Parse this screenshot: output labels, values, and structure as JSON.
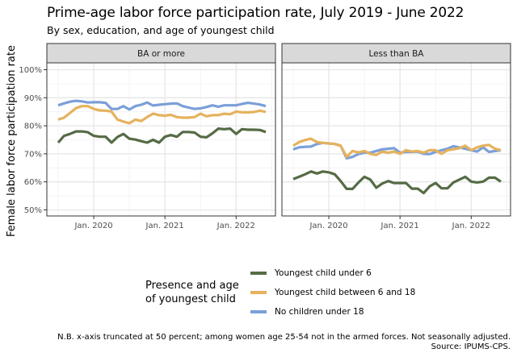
{
  "chart_data": {
    "type": "line",
    "title": "Prime-age labor force participation rate, July 2019 - June 2022",
    "subtitle": "By sex, education, and age of youngest child",
    "ylabel": "Female labor force participation rate",
    "xlabel": "",
    "ylim": [
      50,
      100
    ],
    "yticks": [
      "50%",
      "60%",
      "70%",
      "80%",
      "90%",
      "100%"
    ],
    "ytick_values": [
      50,
      60,
      70,
      80,
      90,
      100
    ],
    "xticks": [
      "Jan. 2020",
      "Jan. 2021",
      "Jan. 2022"
    ],
    "xtick_month_index": [
      6,
      18,
      30
    ],
    "x_start": "July 2019",
    "x_end": "June 2022",
    "n_months": 36,
    "grid": true,
    "legend": {
      "title": "Presence and age of youngest child",
      "title_lines": [
        "Presence and age",
        "of youngest child"
      ],
      "placement": "bottom",
      "entries": [
        {
          "name": "Youngest child under 6",
          "color": "#556b45"
        },
        {
          "name": "Youngest child between 6 and 18",
          "color": "#e5b25d"
        },
        {
          "name": "No children under 18",
          "color": "#7b9fd8"
        }
      ]
    },
    "panels": [
      {
        "label": "BA or more",
        "series": [
          {
            "name": "No children under 18",
            "color": "#7b9fd8",
            "values": [
              87.3,
              88.0,
              88.6,
              88.9,
              88.7,
              88.3,
              88.4,
              88.4,
              88.2,
              86.0,
              86.0,
              87.0,
              85.8,
              87.0,
              87.5,
              88.3,
              87.2,
              87.5,
              87.7,
              87.9,
              88.0,
              87.0,
              86.5,
              86.0,
              86.2,
              86.7,
              87.3,
              86.8,
              87.3,
              87.3,
              87.3,
              87.8,
              88.2,
              87.9,
              87.6,
              87.0
            ]
          },
          {
            "name": "Youngest child between 6 and 18",
            "color": "#e5b25d",
            "values": [
              82.2,
              82.9,
              84.6,
              86.3,
              87.0,
              87.0,
              86.0,
              85.5,
              85.4,
              85.1,
              82.2,
              81.5,
              80.9,
              82.2,
              81.7,
              83.1,
              84.3,
              83.8,
              83.6,
              83.9,
              83.1,
              82.9,
              82.9,
              83.1,
              84.3,
              83.4,
              83.8,
              83.8,
              84.3,
              84.1,
              85.1,
              84.8,
              84.8,
              84.9,
              85.4,
              84.9
            ]
          },
          {
            "name": "Youngest child under 6",
            "color": "#556b45",
            "values": [
              74.0,
              76.4,
              77.1,
              78.0,
              78.0,
              77.7,
              76.4,
              76.1,
              76.1,
              74.0,
              76.0,
              77.1,
              75.4,
              75.1,
              74.5,
              74.0,
              75.0,
              74.0,
              76.1,
              76.7,
              76.1,
              77.8,
              77.8,
              77.6,
              76.1,
              75.9,
              77.3,
              79.0,
              78.8,
              79.0,
              77.1,
              78.8,
              78.6,
              78.6,
              78.5,
              77.8
            ]
          }
        ]
      },
      {
        "label": "Less than BA",
        "series": [
          {
            "name": "No children under 18",
            "color": "#7b9fd8",
            "values": [
              71.6,
              72.3,
              72.5,
              72.6,
              73.5,
              73.9,
              73.7,
              73.5,
              72.9,
              68.4,
              68.9,
              69.9,
              70.4,
              70.4,
              71.0,
              71.6,
              71.8,
              72.0,
              70.4,
              70.7,
              70.7,
              70.8,
              70.0,
              69.9,
              70.7,
              71.3,
              71.8,
              72.7,
              72.3,
              71.8,
              71.3,
              70.8,
              72.3,
              70.7,
              71.0,
              71.3
            ]
          },
          {
            "name": "Youngest child between 6 and 18",
            "color": "#e5b25d",
            "values": [
              72.9,
              74.2,
              74.9,
              75.4,
              74.2,
              73.9,
              73.7,
              73.5,
              72.9,
              68.9,
              71.0,
              70.5,
              71.0,
              70.0,
              69.6,
              70.8,
              70.4,
              70.8,
              70.0,
              71.3,
              70.8,
              71.0,
              70.4,
              71.3,
              71.3,
              70.0,
              71.3,
              71.6,
              72.0,
              72.9,
              71.3,
              72.3,
              72.9,
              73.2,
              71.8,
              71.3
            ]
          },
          {
            "name": "Youngest child under 6",
            "color": "#556b45",
            "values": [
              61.0,
              61.8,
              62.7,
              63.7,
              63.0,
              63.7,
              63.4,
              62.7,
              60.3,
              57.5,
              57.5,
              59.8,
              61.8,
              60.8,
              57.9,
              59.4,
              60.3,
              59.6,
              59.6,
              59.6,
              57.6,
              57.6,
              56.0,
              58.4,
              59.6,
              57.7,
              57.7,
              59.8,
              60.8,
              61.8,
              60.1,
              59.8,
              60.1,
              61.5,
              61.5,
              60.1
            ]
          }
        ]
      }
    ],
    "note_lines": [
      "N.B. x-axis truncated at 50 percent; among women age 25-54 not in the armed forces. Not seasonally adjusted.",
      "Source: IPUMS-CPS."
    ]
  }
}
